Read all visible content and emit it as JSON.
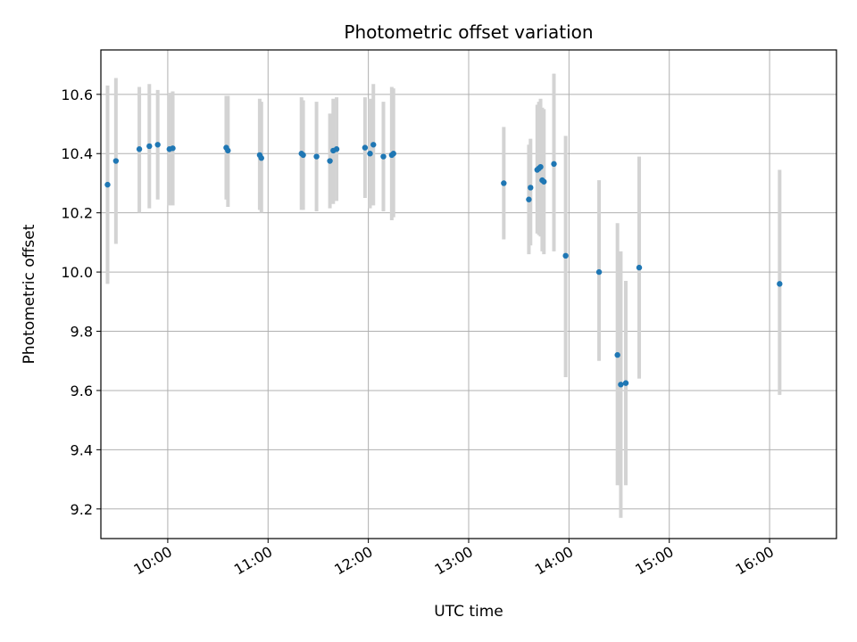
{
  "chart_data": {
    "type": "scatter",
    "title": "Photometric offset variation",
    "xlabel": "UTC time",
    "ylabel": "Photometric offset",
    "grid": true,
    "xlim": [
      "09:20",
      "16:40"
    ],
    "ylim": [
      9.1,
      10.75
    ],
    "xticks": [
      "10:00",
      "11:00",
      "12:00",
      "13:00",
      "14:00",
      "15:00",
      "16:00"
    ],
    "yticks": [
      9.2,
      9.4,
      9.6,
      9.8,
      10.0,
      10.2,
      10.4,
      10.6
    ],
    "colors": {
      "point": "#1f77b4",
      "errorbar": "#d3d3d3",
      "grid": "#b0b0b0"
    },
    "points": [
      {
        "x": "09:24",
        "y": 10.295,
        "low": 9.96,
        "high": 10.63
      },
      {
        "x": "09:29",
        "y": 10.375,
        "low": 10.095,
        "high": 10.655
      },
      {
        "x": "09:43",
        "y": 10.415,
        "low": 10.2,
        "high": 10.625
      },
      {
        "x": "09:49",
        "y": 10.425,
        "low": 10.215,
        "high": 10.635
      },
      {
        "x": "09:54",
        "y": 10.43,
        "low": 10.245,
        "high": 10.615
      },
      {
        "x": "10:01",
        "y": 10.415,
        "low": 10.225,
        "high": 10.605
      },
      {
        "x": "10:03",
        "y": 10.418,
        "low": 10.225,
        "high": 10.61
      },
      {
        "x": "10:35",
        "y": 10.42,
        "low": 10.245,
        "high": 10.595
      },
      {
        "x": "10:36",
        "y": 10.41,
        "low": 10.22,
        "high": 10.595
      },
      {
        "x": "10:55",
        "y": 10.395,
        "low": 10.21,
        "high": 10.585
      },
      {
        "x": "10:56",
        "y": 10.385,
        "low": 10.2,
        "high": 10.575
      },
      {
        "x": "11:20",
        "y": 10.4,
        "low": 10.21,
        "high": 10.59
      },
      {
        "x": "11:21",
        "y": 10.395,
        "low": 10.21,
        "high": 10.58
      },
      {
        "x": "11:29",
        "y": 10.39,
        "low": 10.205,
        "high": 10.575
      },
      {
        "x": "11:37",
        "y": 10.375,
        "low": 10.215,
        "high": 10.535
      },
      {
        "x": "11:39",
        "y": 10.41,
        "low": 10.23,
        "high": 10.585
      },
      {
        "x": "11:41",
        "y": 10.415,
        "low": 10.24,
        "high": 10.59
      },
      {
        "x": "11:58",
        "y": 10.42,
        "low": 10.25,
        "high": 10.59
      },
      {
        "x": "12:01",
        "y": 10.4,
        "low": 10.215,
        "high": 10.585
      },
      {
        "x": "12:03",
        "y": 10.43,
        "low": 10.225,
        "high": 10.635
      },
      {
        "x": "12:09",
        "y": 10.39,
        "low": 10.205,
        "high": 10.575
      },
      {
        "x": "12:14",
        "y": 10.395,
        "low": 10.175,
        "high": 10.625
      },
      {
        "x": "12:15",
        "y": 10.4,
        "low": 10.185,
        "high": 10.62
      },
      {
        "x": "13:21",
        "y": 10.3,
        "low": 10.11,
        "high": 10.49
      },
      {
        "x": "13:36",
        "y": 10.245,
        "low": 10.06,
        "high": 10.43
      },
      {
        "x": "13:37",
        "y": 10.285,
        "low": 10.09,
        "high": 10.45
      },
      {
        "x": "13:41",
        "y": 10.345,
        "low": 10.13,
        "high": 10.565
      },
      {
        "x": "13:42",
        "y": 10.35,
        "low": 10.125,
        "high": 10.575
      },
      {
        "x": "13:43",
        "y": 10.355,
        "low": 10.12,
        "high": 10.585
      },
      {
        "x": "13:44",
        "y": 10.31,
        "low": 10.07,
        "high": 10.555
      },
      {
        "x": "13:45",
        "y": 10.305,
        "low": 10.06,
        "high": 10.55
      },
      {
        "x": "13:51",
        "y": 10.365,
        "low": 10.07,
        "high": 10.67
      },
      {
        "x": "13:58",
        "y": 10.055,
        "low": 9.645,
        "high": 10.46
      },
      {
        "x": "14:18",
        "y": 10.0,
        "low": 9.7,
        "high": 10.31
      },
      {
        "x": "14:29",
        "y": 9.72,
        "low": 9.28,
        "high": 10.165
      },
      {
        "x": "14:31",
        "y": 9.62,
        "low": 9.17,
        "high": 10.07
      },
      {
        "x": "14:34",
        "y": 9.625,
        "low": 9.28,
        "high": 9.97
      },
      {
        "x": "14:42",
        "y": 10.015,
        "low": 9.64,
        "high": 10.39
      },
      {
        "x": "16:06",
        "y": 9.96,
        "low": 9.585,
        "high": 10.345
      }
    ]
  }
}
